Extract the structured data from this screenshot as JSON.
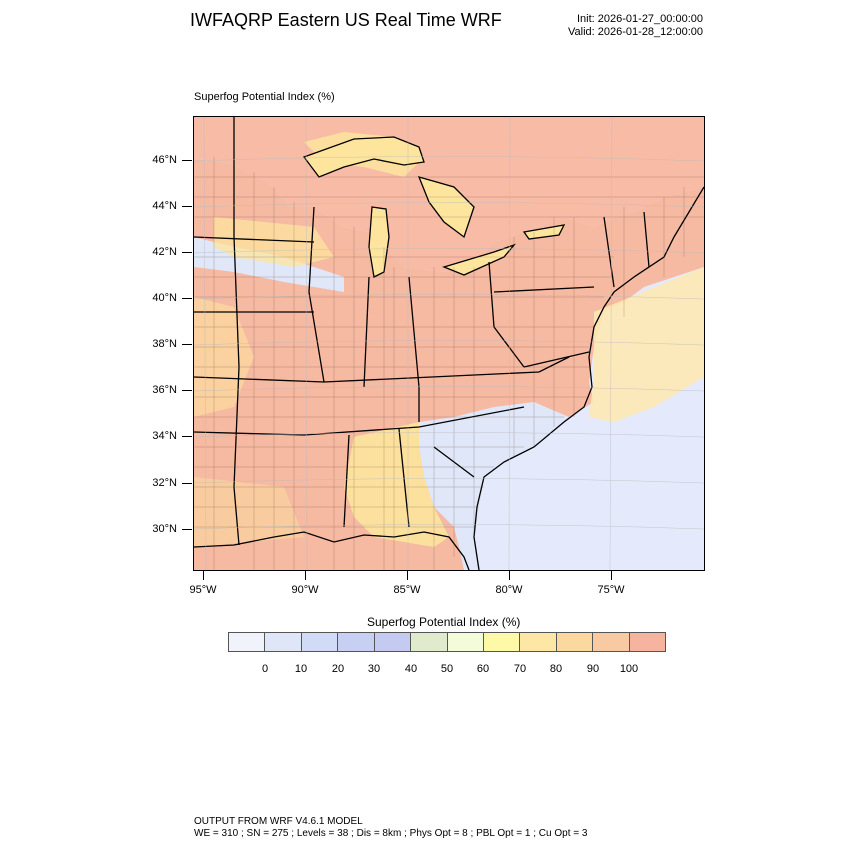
{
  "header": {
    "title": "IWFAQRP Eastern US Real Time WRF",
    "init": "Init: 2026-01-27_00:00:00",
    "valid": "Valid: 2026-01-28_12:00:00"
  },
  "plot": {
    "label": "Superfog Potential Index   (%)",
    "lat_labels": [
      "46°N",
      "44°N",
      "42°N",
      "40°N",
      "38°N",
      "36°N",
      "34°N",
      "32°N",
      "30°N"
    ],
    "lon_labels": [
      "95°W",
      "90°W",
      "85°W",
      "80°W",
      "75°W"
    ],
    "colors": {
      "land_high": "#f6b9a2",
      "land_mid": "#fde59d",
      "land_low": "#dfe7f8",
      "ocean": "#e4eafb",
      "lake": "#ffffff",
      "canada": "#f8bba6",
      "boundary": "#000000"
    }
  },
  "colorbar": {
    "title": "Superfog Potential Index  (%)",
    "labels": [
      "0",
      "10",
      "20",
      "30",
      "40",
      "50",
      "60",
      "70",
      "80",
      "90",
      "100"
    ],
    "colors": [
      "#f0f3fa",
      "#dfe6f8",
      "#d2dbf6",
      "#c7d0f3",
      "#c5caf1",
      "#dfebcc",
      "#f3fbda",
      "#fdf9a6",
      "#fce8a4",
      "#fbd89e",
      "#f9c9a2",
      "#f6b3a0"
    ]
  },
  "footer": {
    "line1": "OUTPUT FROM WRF V4.6.1 MODEL",
    "line2": "WE = 310 ; SN = 275 ; Levels = 38 ; Dis = 8km ; Phys Opt = 8 ; PBL Opt = 1 ; Cu Opt = 3"
  }
}
